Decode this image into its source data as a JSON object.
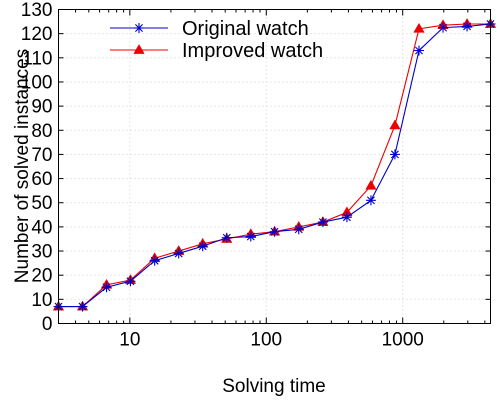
{
  "chart_data": {
    "type": "line",
    "title": "",
    "xlabel": "Solving time",
    "ylabel": "Number of solved instances",
    "xscale": "log",
    "xlim": [
      3,
      4400
    ],
    "ylim": [
      0,
      130
    ],
    "x_major_ticks": [
      10,
      100,
      1000
    ],
    "x_tick_labels": [
      "10",
      "100",
      "1000"
    ],
    "y_ticks": [
      0,
      10,
      20,
      30,
      40,
      50,
      60,
      70,
      80,
      90,
      100,
      110,
      120,
      130
    ],
    "y_tick_labels": [
      "0",
      "10",
      "20",
      "30",
      "40",
      "50",
      "60",
      "70",
      "80",
      "90",
      "100",
      "110",
      "120",
      "130"
    ],
    "grid": true,
    "legend_position": "top-left",
    "series": [
      {
        "name": "Original watch",
        "color": "#0000cc",
        "marker": "asterisk",
        "x": [
          3,
          4.5,
          6.75,
          10.1,
          15.2,
          22.8,
          34.2,
          51.3,
          77,
          115,
          173,
          260,
          390,
          585,
          877,
          1316,
          1975,
          2962,
          4400
        ],
        "y": [
          7,
          7,
          15,
          17.5,
          26,
          29,
          32,
          35.5,
          36,
          38,
          39,
          42,
          44,
          51,
          70,
          113,
          122.5,
          123,
          124
        ]
      },
      {
        "name": "Improved watch",
        "color": "#ee0000",
        "marker": "triangle",
        "x": [
          3,
          4.5,
          6.75,
          10.1,
          15.2,
          22.8,
          34.2,
          51.3,
          77,
          115,
          173,
          260,
          390,
          585,
          877,
          1316,
          1975,
          2962,
          4400
        ],
        "y": [
          7,
          7,
          16,
          18,
          27,
          30,
          33,
          35,
          37,
          38,
          40,
          42,
          46,
          57,
          82,
          122,
          123.5,
          124,
          124
        ]
      }
    ]
  }
}
